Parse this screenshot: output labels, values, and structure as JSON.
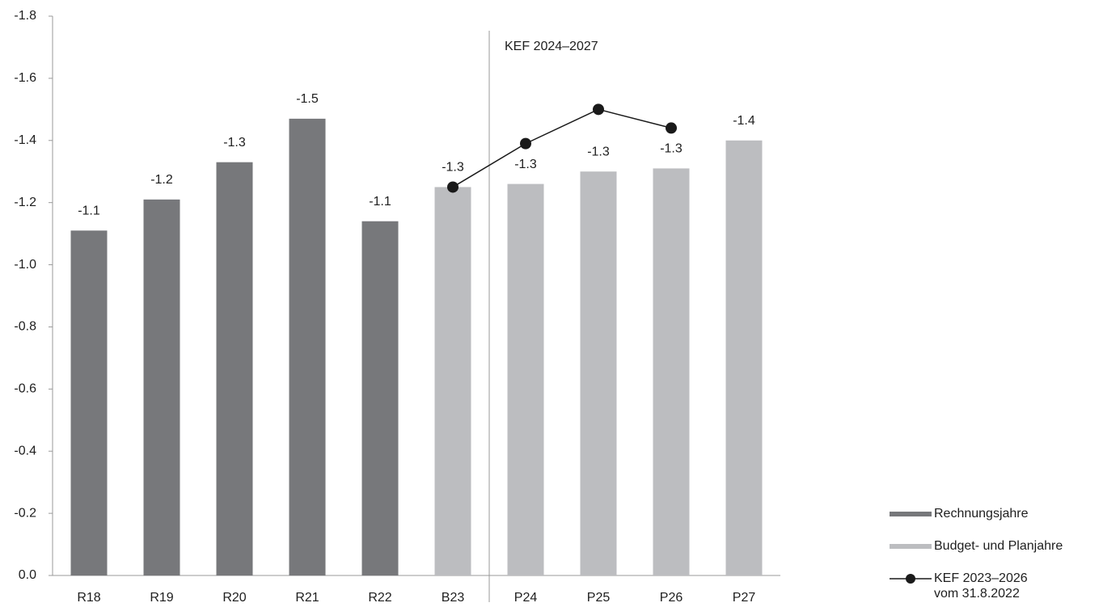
{
  "chart_data": {
    "type": "bar",
    "categories": [
      "R18",
      "R19",
      "R20",
      "R21",
      "R22",
      "B23",
      "P24",
      "P25",
      "P26",
      "P27"
    ],
    "series": [
      {
        "name": "Rechnungsjahre",
        "type": "bar",
        "color": "#77787b",
        "values": [
          -1.11,
          -1.21,
          -1.33,
          -1.47,
          -1.14,
          null,
          null,
          null,
          null,
          null
        ],
        "value_labels": [
          "-1.1",
          "-1.2",
          "-1.3",
          "-1.5",
          "-1.1",
          null,
          null,
          null,
          null,
          null
        ]
      },
      {
        "name": "Budget- und Planjahre",
        "type": "bar",
        "color": "#bcbdc0",
        "values": [
          null,
          null,
          null,
          null,
          null,
          -1.25,
          -1.26,
          -1.3,
          -1.31,
          -1.4
        ],
        "value_labels": [
          null,
          null,
          null,
          null,
          null,
          "-1.3",
          "-1.3",
          "-1.3",
          "-1.3",
          "-1.4"
        ]
      },
      {
        "name": "KEF 2023–2026 vom 31.8.2022",
        "type": "line",
        "color": "#1a1a1a",
        "values": [
          null,
          null,
          null,
          null,
          null,
          -1.25,
          -1.39,
          -1.5,
          -1.44,
          null
        ]
      }
    ],
    "annotation": "KEF 2024–2027",
    "ylim": [
      0,
      -1.8
    ],
    "yticks": [
      {
        "value": 0,
        "label": "0.0"
      },
      -0.2,
      -0.4,
      -0.6,
      -0.8,
      {
        "value": -1,
        "label": "-1.0"
      },
      -1.2,
      -1.4,
      -1.6,
      -1.8
    ],
    "grid": false
  }
}
